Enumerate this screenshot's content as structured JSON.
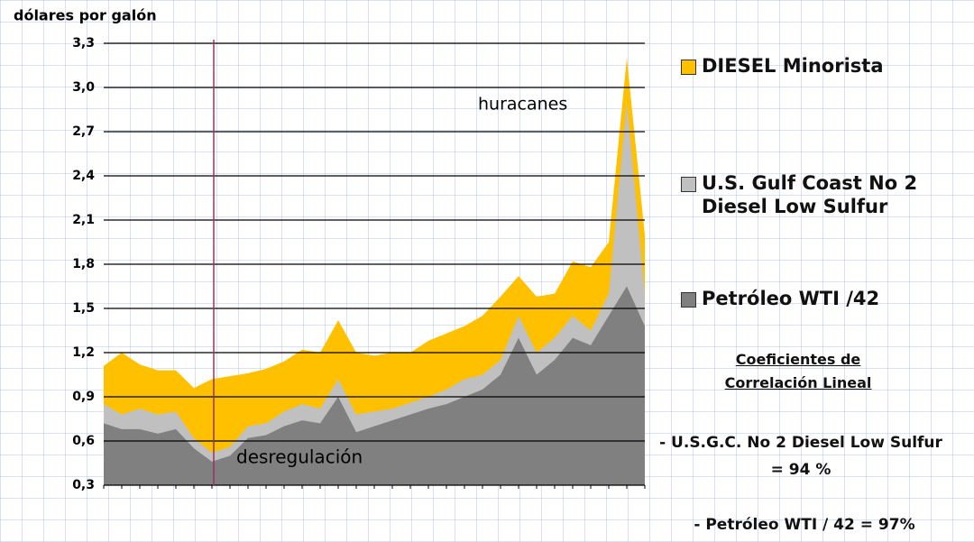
{
  "chart_data": {
    "type": "area",
    "y_label": "dólares por galón",
    "categories": [
      null,
      null,
      null,
      null,
      null,
      null,
      null,
      null,
      null,
      null,
      null,
      null,
      null,
      null,
      null,
      null,
      null,
      null,
      null,
      null,
      null,
      null,
      null,
      null,
      null,
      null,
      null,
      null,
      null,
      null,
      null
    ],
    "ylim": [
      0.3,
      3.3
    ],
    "yticks": [
      {
        "value": 0.3,
        "label": "0,3"
      },
      {
        "value": 0.6,
        "label": "0,6"
      },
      {
        "value": 0.9,
        "label": "0,9"
      },
      {
        "value": 1.2,
        "label": "1,2"
      },
      {
        "value": 1.5,
        "label": "1,5"
      },
      {
        "value": 1.8,
        "label": "1,8"
      },
      {
        "value": 2.1,
        "label": "2,1"
      },
      {
        "value": 2.4,
        "label": "2,4"
      },
      {
        "value": 2.7,
        "label": "2,7"
      },
      {
        "value": 3.0,
        "label": "3,0"
      },
      {
        "value": 3.3,
        "label": "3,3"
      }
    ],
    "grid": true,
    "series": [
      {
        "name": "DIESEL Minorista",
        "color": "#ffc000",
        "values": [
          1.11,
          1.2,
          1.12,
          1.08,
          1.08,
          0.96,
          1.02,
          1.04,
          1.06,
          1.09,
          1.14,
          1.22,
          1.2,
          1.42,
          1.2,
          1.18,
          1.2,
          1.2,
          1.28,
          1.33,
          1.38,
          1.45,
          1.58,
          1.72,
          1.58,
          1.6,
          1.82,
          1.78,
          1.95,
          3.2,
          2.0
        ]
      },
      {
        "name": "U.S. Gulf Coast No 2 Diesel Low Sulfur",
        "color": "#c0c0c0",
        "values": [
          0.85,
          0.78,
          0.82,
          0.78,
          0.8,
          0.62,
          0.52,
          0.56,
          0.7,
          0.72,
          0.8,
          0.85,
          0.82,
          1.02,
          0.78,
          0.8,
          0.82,
          0.86,
          0.9,
          0.95,
          1.02,
          1.05,
          1.15,
          1.45,
          1.2,
          1.3,
          1.45,
          1.35,
          1.6,
          2.9,
          1.6
        ]
      },
      {
        "name": "Petróleo WTI /42",
        "color": "#808080",
        "values": [
          0.72,
          0.68,
          0.68,
          0.65,
          0.68,
          0.55,
          0.46,
          0.5,
          0.62,
          0.64,
          0.7,
          0.74,
          0.72,
          0.9,
          0.66,
          0.7,
          0.74,
          0.78,
          0.82,
          0.85,
          0.9,
          0.95,
          1.05,
          1.3,
          1.05,
          1.15,
          1.3,
          1.25,
          1.45,
          1.65,
          1.38
        ]
      }
    ],
    "annotations": [
      "huracanes",
      "desregulación"
    ],
    "notes": {
      "heading": "Coeficientes de Correlación Lineal",
      "items": [
        "- U.S.G.C. No 2 Diesel Low Sulfur = 94 %",
        "- Petróleo WTI / 42 = 97%"
      ]
    }
  }
}
